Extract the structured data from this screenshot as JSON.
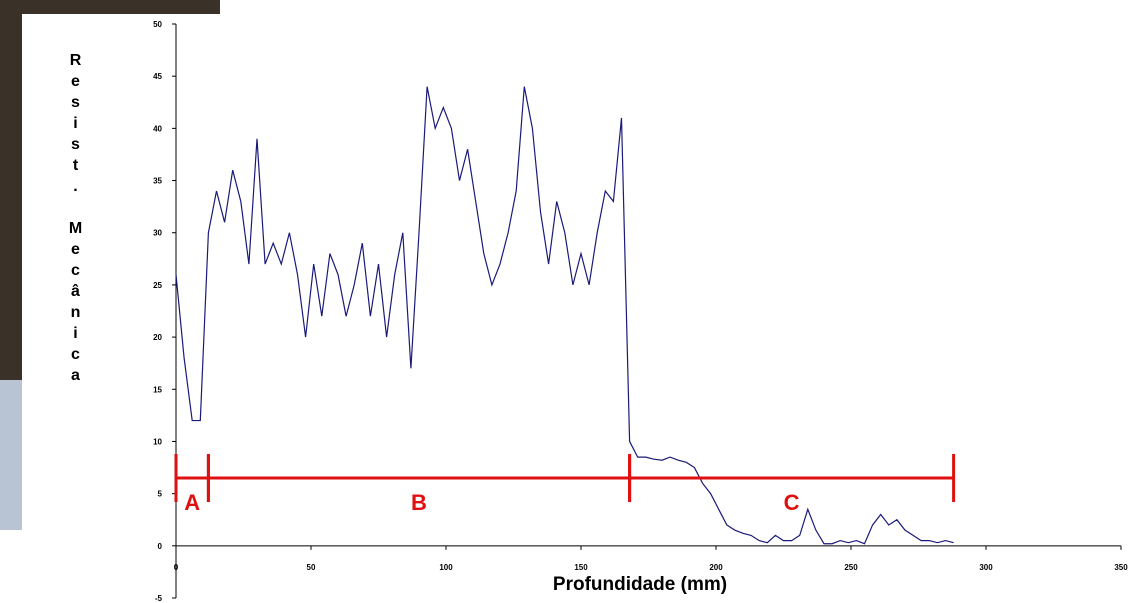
{
  "chart_data": {
    "type": "line",
    "y_label": "Resist. Mecânica",
    "x_label": "Profundidade (mm)",
    "xlim": [
      0,
      350
    ],
    "xticks": [
      0,
      50,
      100,
      150,
      200,
      250,
      300,
      350
    ],
    "ylim": [
      -5,
      50
    ],
    "yticks": [
      -5,
      0,
      5,
      10,
      15,
      20,
      25,
      30,
      35,
      40,
      45,
      50
    ],
    "series": [
      {
        "color": "#1a1a7a",
        "x": [
          0,
          3,
          6,
          9,
          12,
          15,
          18,
          21,
          24,
          27,
          30,
          33,
          36,
          39,
          42,
          45,
          48,
          51,
          54,
          57,
          60,
          63,
          66,
          69,
          72,
          75,
          78,
          81,
          84,
          87,
          90,
          93,
          96,
          99,
          102,
          105,
          108,
          111,
          114,
          117,
          120,
          123,
          126,
          129,
          132,
          135,
          138,
          141,
          144,
          147,
          150,
          153,
          156,
          159,
          162,
          165,
          168,
          171,
          174,
          177,
          180,
          183,
          186,
          189,
          192,
          195,
          198,
          201,
          204,
          207,
          210,
          213,
          216,
          219,
          222,
          225,
          228,
          231,
          234,
          237,
          240,
          243,
          246,
          249,
          252,
          255,
          258,
          261,
          264,
          267,
          270,
          273,
          276,
          279,
          282,
          285,
          288
        ],
        "values": [
          26,
          18,
          12,
          12,
          30,
          34,
          31,
          36,
          33,
          27,
          39,
          27,
          29,
          27,
          30,
          26,
          20,
          27,
          22,
          28,
          26,
          22,
          25,
          29,
          22,
          27,
          20,
          26,
          30,
          17,
          30,
          44,
          40,
          42,
          40,
          35,
          38,
          33,
          28,
          25,
          27,
          30,
          34,
          44,
          40,
          32,
          27,
          33,
          30,
          25,
          28,
          25,
          30,
          34,
          33,
          41,
          10,
          8.5,
          8.5,
          8.3,
          8.2,
          8.5,
          8.2,
          8,
          7.5,
          6,
          5,
          3.5,
          2,
          1.5,
          1.2,
          1,
          0.5,
          0.3,
          1,
          0.5,
          0.5,
          1,
          3.5,
          1.5,
          0.2,
          0.2,
          0.5,
          0.3,
          0.5,
          0.2,
          2,
          3,
          2,
          2.5,
          1.5,
          1,
          0.5,
          0.5,
          0.3,
          0.5,
          0.3
        ]
      }
    ],
    "regions_y": 6.5,
    "regions": [
      {
        "label": "A",
        "start": 0,
        "end": 12
      },
      {
        "label": "B",
        "start": 12,
        "end": 168
      },
      {
        "label": "C",
        "start": 168,
        "end": 288
      }
    ]
  }
}
